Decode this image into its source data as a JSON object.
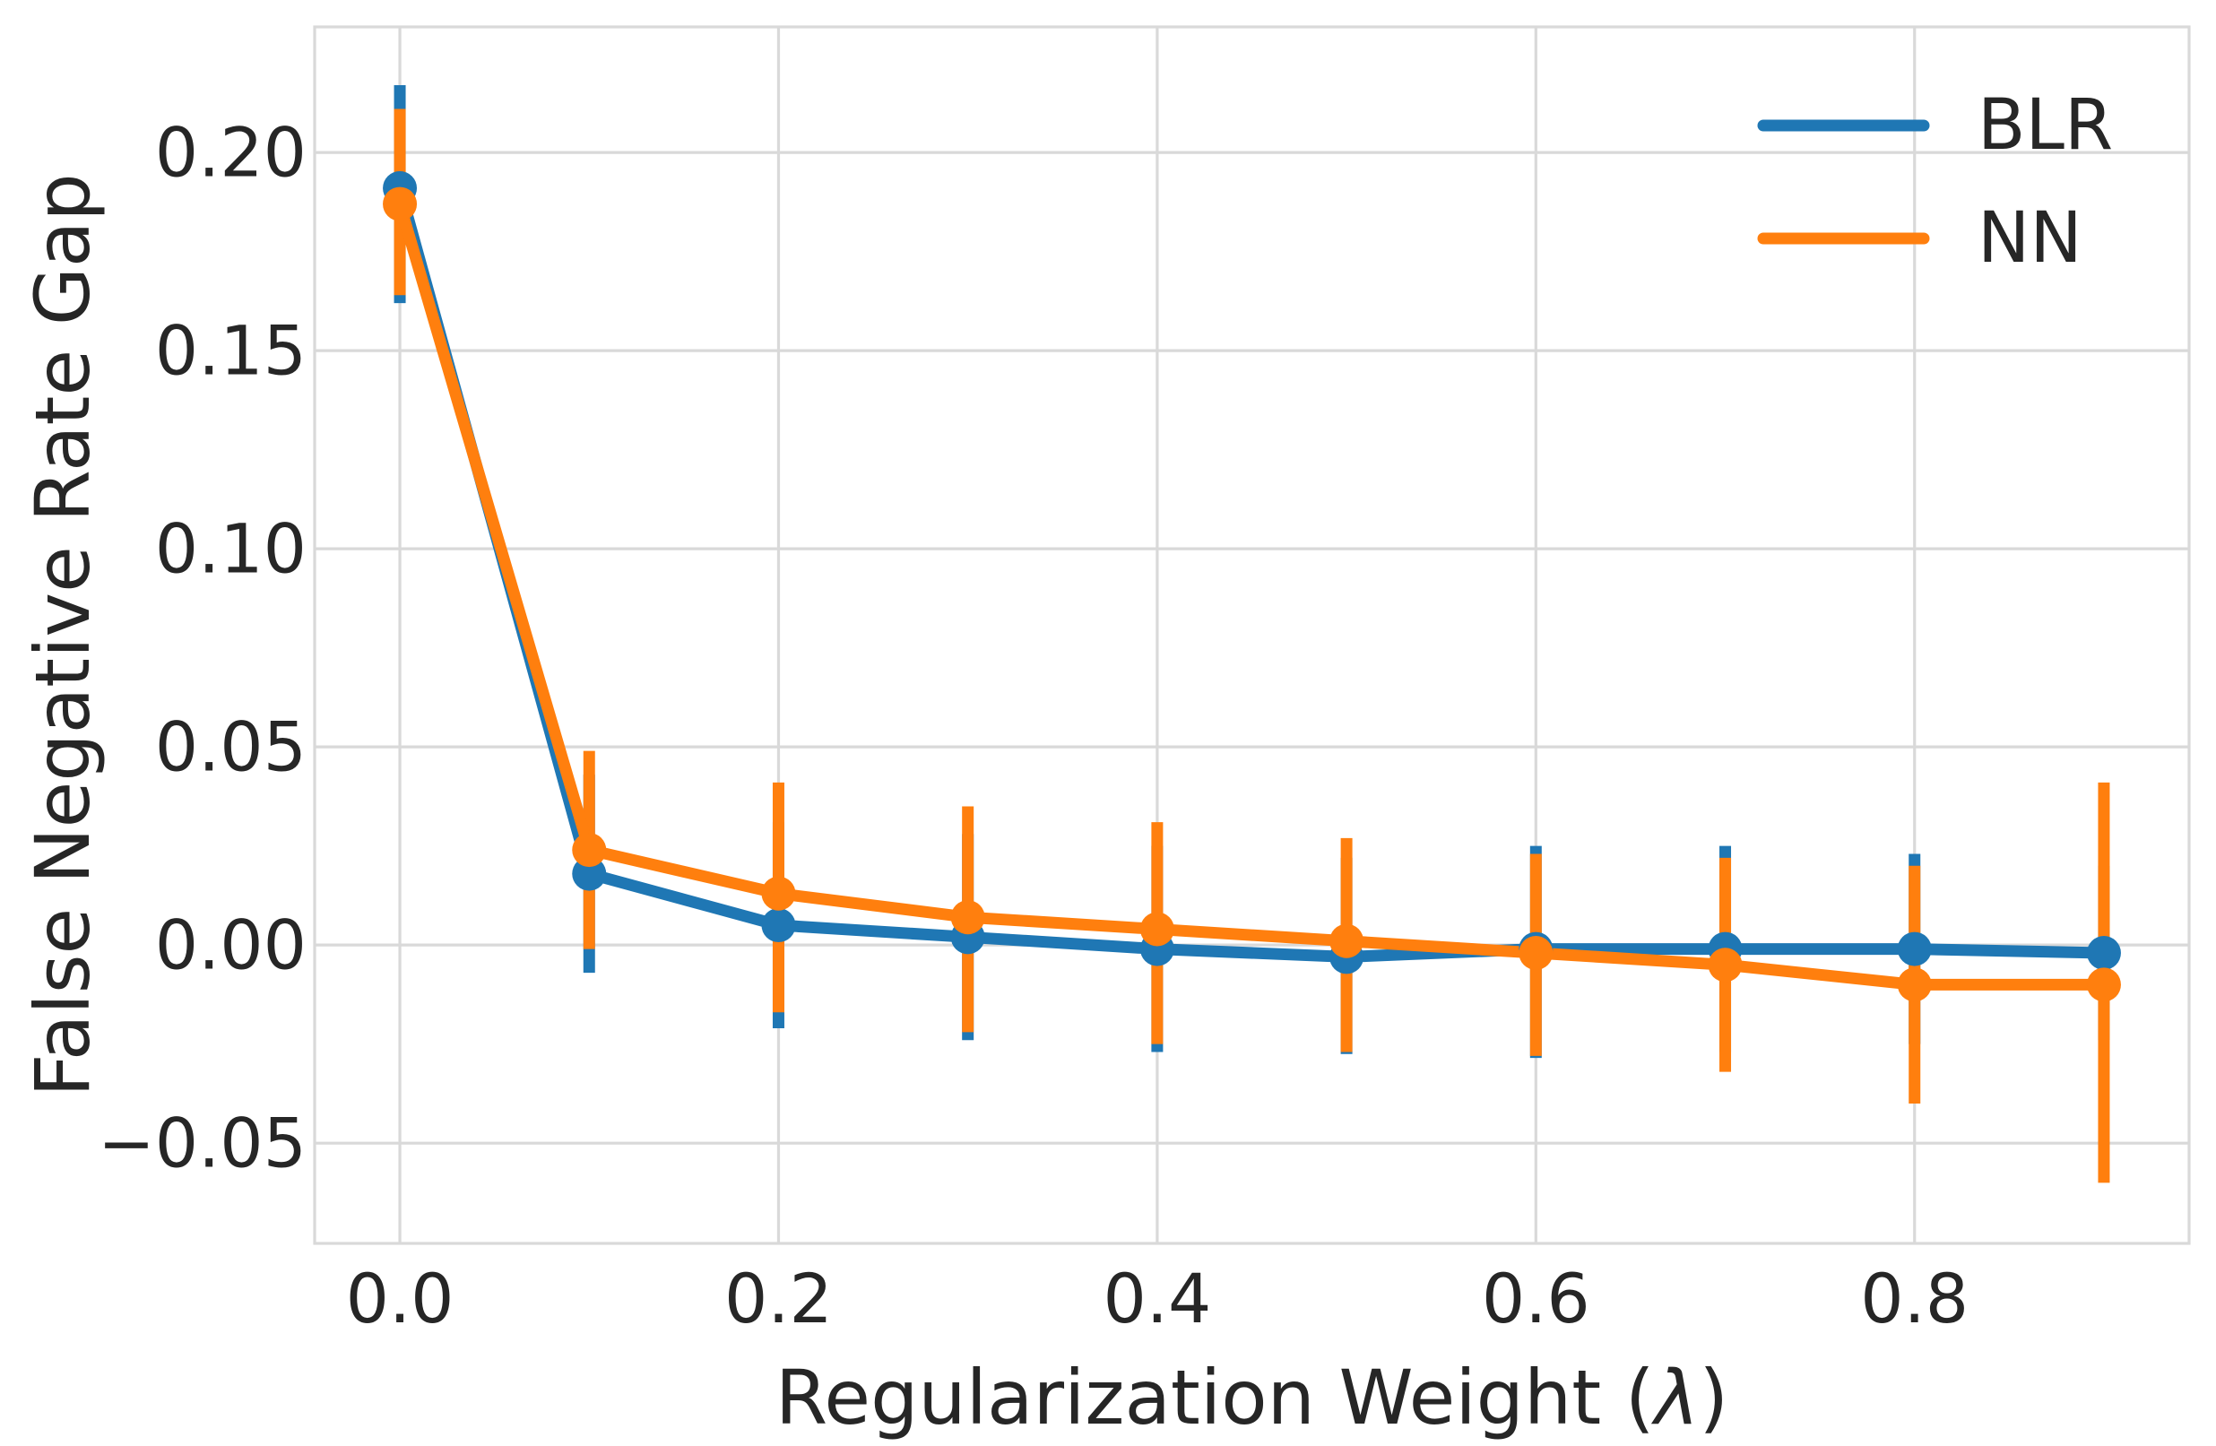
{
  "styles": {
    "background": "#ffffff",
    "grid_color": "#d9d9d9",
    "text_color": "#262626",
    "blr_color": "#1f77b4",
    "nn_color": "#ff7f0e"
  },
  "legend": {
    "entries": [
      "BLR",
      "NN"
    ],
    "position": "upper right"
  },
  "chart_data": {
    "type": "line",
    "title": "",
    "xlabel": "Regularization Weight (λ)",
    "ylabel": "False Negative Rate Gap",
    "x": [
      0.0,
      0.1,
      0.2,
      0.3,
      0.4,
      0.5,
      0.6,
      0.7,
      0.8,
      0.9
    ],
    "series": [
      {
        "name": "BLR",
        "color": "#1f77b4",
        "values": [
          0.191,
          0.018,
          0.005,
          0.002,
          -0.001,
          -0.003,
          -0.001,
          -0.001,
          -0.001,
          -0.002
        ],
        "err_low": [
          0.162,
          -0.007,
          -0.021,
          -0.024,
          -0.027,
          -0.0275,
          -0.0285,
          -0.027,
          -0.025,
          -0.024
        ],
        "err_high": [
          0.217,
          0.043,
          0.031,
          0.028,
          0.025,
          0.022,
          0.025,
          0.025,
          0.023,
          0.02
        ]
      },
      {
        "name": "NN",
        "color": "#ff7f0e",
        "values": [
          0.187,
          0.024,
          0.013,
          0.007,
          0.004,
          0.001,
          -0.002,
          -0.005,
          -0.01,
          -0.01
        ],
        "err_low": [
          0.164,
          -0.001,
          -0.017,
          -0.022,
          -0.025,
          -0.027,
          -0.028,
          -0.032,
          -0.04,
          -0.06
        ],
        "err_high": [
          0.211,
          0.049,
          0.041,
          0.035,
          0.031,
          0.027,
          0.023,
          0.022,
          0.02,
          0.041
        ]
      }
    ],
    "xticks": {
      "values": [
        0.0,
        0.2,
        0.4,
        0.6,
        0.8
      ],
      "labels": [
        "0.0",
        "0.2",
        "0.4",
        "0.6",
        "0.8"
      ]
    },
    "yticks": {
      "values": [
        -0.05,
        0.0,
        0.05,
        0.1,
        0.15,
        0.2
      ],
      "labels": [
        "−0.05",
        "0.00",
        "0.05",
        "0.10",
        "0.15",
        "0.20"
      ]
    },
    "xlim": [
      -0.045,
      0.945
    ],
    "ylim": [
      -0.0753,
      0.2317
    ],
    "grid": true,
    "legend_position": "upper right"
  }
}
